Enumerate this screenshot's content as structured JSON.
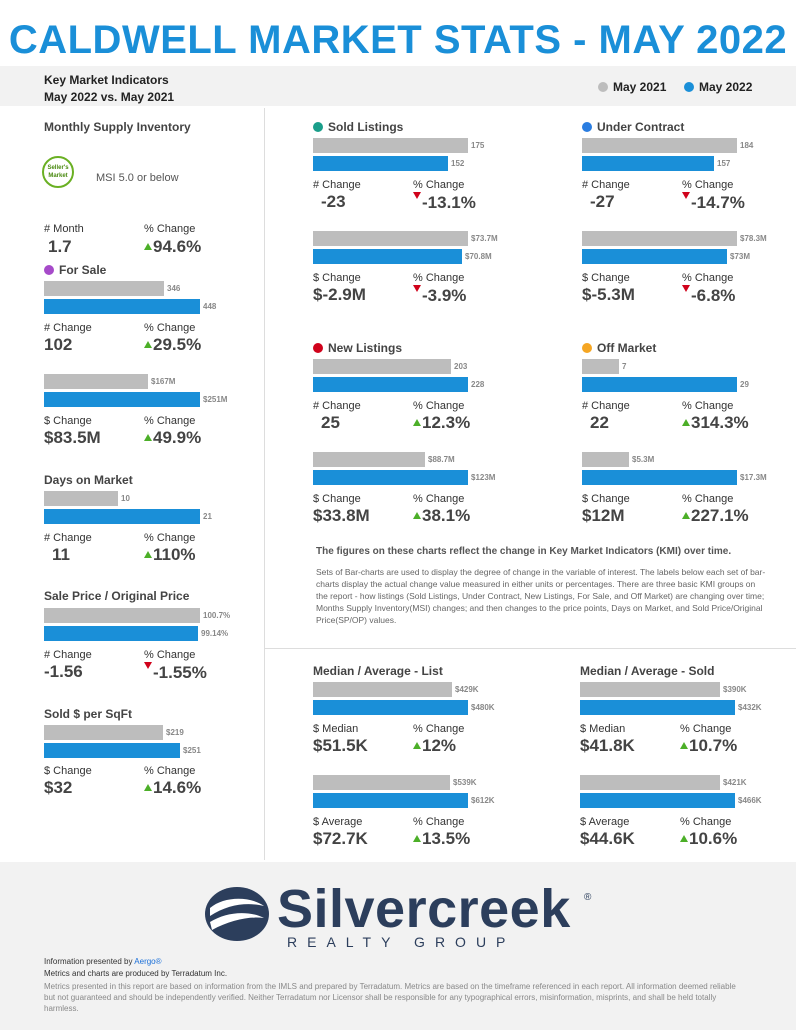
{
  "header": {
    "title": "CALDWELL MARKET STATS - MAY 2022",
    "line1": "Key Market Indicators",
    "line2": "May 2022 vs. May 2021"
  },
  "legend": {
    "y2021": "May 2021",
    "y2022": "May 2022",
    "color_2021": "#bdbdbd",
    "color_2022": "#1a8fd8"
  },
  "msi": {
    "title": "Monthly Supply Inventory",
    "badge_line1": "Seller's",
    "badge_line2": "Market",
    "badge_text": "MSI 5.0 or below",
    "month_label": "# Month",
    "month_value": "1.7",
    "pct_label": "% Change",
    "pct_value": "94.6%"
  },
  "for_sale": {
    "title": "For Sale",
    "dot_color": "#a64ac9",
    "count": {
      "v21": 346,
      "v22": 448,
      "l21": "346",
      "l22": "448"
    },
    "count_change_label": "# Change",
    "count_change": "102",
    "count_pct_label": "% Change",
    "count_pct": "29.5%",
    "dollar": {
      "v21": 167,
      "v22": 251,
      "l21": "$167M",
      "l22": "$251M"
    },
    "dollar_change_label": "$ Change",
    "dollar_change": "$83.5M",
    "dollar_pct_label": "% Change",
    "dollar_pct": "49.9%"
  },
  "dom": {
    "title": "Days on Market",
    "v21": 10,
    "v22": 21,
    "l21": "10",
    "l22": "21",
    "change_label": "# Change",
    "change": "11",
    "pct_label": "% Change",
    "pct": "110%"
  },
  "spop": {
    "title": "Sale Price / Original Price",
    "v21": 100.7,
    "v22": 99.14,
    "l21": "100.7%",
    "l22": "99.14%",
    "change_label": "# Change",
    "change": "-1.56",
    "pct_label": "% Change",
    "pct": "-1.55%"
  },
  "sqft": {
    "title": "Sold $ per SqFt",
    "v21": 219,
    "v22": 251,
    "l21": "$219",
    "l22": "$251",
    "change_label": "$ Change",
    "change": "$32",
    "pct_label": "% Change",
    "pct": "14.6%"
  },
  "sold": {
    "title": "Sold Listings",
    "dot_color": "#1a9e8a",
    "count": {
      "v21": 175,
      "v22": 152,
      "l21": "175",
      "l22": "152"
    },
    "count_change_label": "# Change",
    "count_change": "-23",
    "count_pct_label": "% Change",
    "count_pct": "-13.1%",
    "dollar": {
      "v21": 73.7,
      "v22": 70.8,
      "l21": "$73.7M",
      "l22": "$70.8M"
    },
    "dollar_change_label": "$ Change",
    "dollar_change": "$-2.9M",
    "dollar_pct_label": "% Change",
    "dollar_pct": "-3.9%"
  },
  "under_contract": {
    "title": "Under Contract",
    "dot_color": "#2a7de1",
    "count": {
      "v21": 184,
      "v22": 157,
      "l21": "184",
      "l22": "157"
    },
    "count_change_label": "# Change",
    "count_change": "-27",
    "count_pct_label": "% Change",
    "count_pct": "-14.7%",
    "dollar": {
      "v21": 78.3,
      "v22": 73,
      "l21": "$78.3M",
      "l22": "$73M"
    },
    "dollar_change_label": "$ Change",
    "dollar_change": "$-5.3M",
    "dollar_pct_label": "% Change",
    "dollar_pct": "-6.8%"
  },
  "new_listings": {
    "title": "New Listings",
    "dot_color": "#d0021b",
    "count": {
      "v21": 203,
      "v22": 228,
      "l21": "203",
      "l22": "228"
    },
    "count_change_label": "# Change",
    "count_change": "25",
    "count_pct_label": "% Change",
    "count_pct": "12.3%",
    "dollar": {
      "v21": 88.7,
      "v22": 123,
      "l21": "$88.7M",
      "l22": "$123M"
    },
    "dollar_change_label": "$ Change",
    "dollar_change": "$33.8M",
    "dollar_pct_label": "% Change",
    "dollar_pct": "38.1%"
  },
  "off_market": {
    "title": "Off Market",
    "dot_color": "#f5a623",
    "count": {
      "v21": 7,
      "v22": 29,
      "l21": "7",
      "l22": "29"
    },
    "count_change_label": "# Change",
    "count_change": "22",
    "count_pct_label": "% Change",
    "count_pct": "314.3%",
    "dollar": {
      "v21": 5.3,
      "v22": 17.3,
      "l21": "$5.3M",
      "l22": "$17.3M"
    },
    "dollar_change_label": "$ Change",
    "dollar_change": "$12M",
    "dollar_pct_label": "% Change",
    "dollar_pct": "227.1%"
  },
  "notes": {
    "bold": "The figures on these charts reflect the change in Key Market Indicators (KMI) over time.",
    "body": "Sets of Bar-charts are used to display the degree of change in the variable of interest. The labels below each set of bar-charts display the actual change value measured in either units or percentages. There are three basic KMI groups on the report - how listings (Sold Listings, Under Contract, New Listings, For Sale, and Off Market) are changing over time; Months Supply Inventory(MSI) changes; and then changes to the price points, Days on Market, and Sold Price/Original Price(SP/OP) values."
  },
  "list_price": {
    "title": "Median / Average - List",
    "median": {
      "v21": 429,
      "v22": 480,
      "l21": "$429K",
      "l22": "$480K"
    },
    "median_label": "$ Median",
    "median_change": "$51.5K",
    "median_pct_label": "% Change",
    "median_pct": "12%",
    "average": {
      "v21": 539,
      "v22": 612,
      "l21": "$539K",
      "l22": "$612K"
    },
    "average_label": "$ Average",
    "average_change": "$72.7K",
    "average_pct_label": "% Change",
    "average_pct": "13.5%"
  },
  "sold_price": {
    "title": "Median / Average - Sold",
    "median": {
      "v21": 390,
      "v22": 432,
      "l21": "$390K",
      "l22": "$432K"
    },
    "median_label": "$ Median",
    "median_change": "$41.8K",
    "median_pct_label": "% Change",
    "median_pct": "10.7%",
    "average": {
      "v21": 421,
      "v22": 466,
      "l21": "$421K",
      "l22": "$466K"
    },
    "average_label": "$ Average",
    "average_change": "$44.6K",
    "average_pct_label": "% Change",
    "average_pct": "10.6%"
  },
  "footer": {
    "logo_word": "Silvercreek",
    "logo_reg": "®",
    "logo_sub": "REALTY GROUP",
    "presented_prefix": "Information presented by ",
    "presented_link": "Aergo®",
    "line2": "Metrics and charts are produced by Terradatum Inc.",
    "disclaimer": "Metrics presented in this report are based on information from the IMLS and prepared by Terradatum. Metrics are based on the timeframe referenced in each report. All information deemed reliable but not guaranteed and should be independently verified. Neither Terradatum nor Licensor shall be responsible for any typographical errors, misinformation, misprints, and shall be held totally harmless."
  }
}
